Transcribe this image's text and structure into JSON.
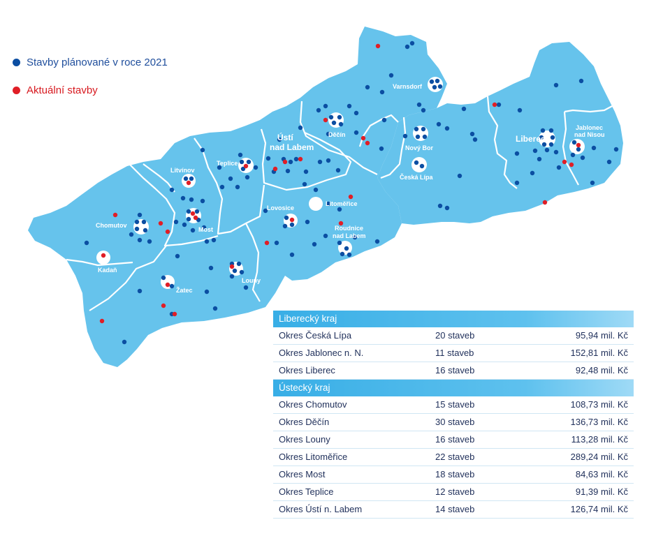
{
  "colors": {
    "region_fill": "#66c3ec",
    "border": "#ffffff",
    "planned_dot": "#0b4ea2",
    "current_dot": "#e01e26",
    "header_blue": "#38aee6"
  },
  "legend": {
    "planned": "Stavby plánované v roce 2021",
    "current": "Aktuální stavby"
  },
  "cities": {
    "varnsdorf": "Varnsdorf",
    "decin": "Děčín",
    "usti_line1": "Ústí",
    "usti_line2": "nad Labem",
    "teplice": "Teplice",
    "litvinov": "Litvínov",
    "most": "Most",
    "chomutov": "Chomutov",
    "kadan": "Kadaň",
    "zatec": "Žatec",
    "louny": "Louny",
    "lovosice": "Lovosice",
    "litomerice": "Litoměřice",
    "roudnice_line1": "Roudnice",
    "roudnice_line2": "nad Labem",
    "novy_bor": "Nový Bor",
    "ceska_lipa": "Česká Lípa",
    "liberec": "Liberec",
    "jablonec_line1": "Jablonec",
    "jablonec_line2": "nad Nisou"
  },
  "table": {
    "liberecky": {
      "title": "Liberecký kraj",
      "rows": [
        {
          "name": "Okres Česká Lípa",
          "count": "20 staveb",
          "price": "95,94 mil. Kč"
        },
        {
          "name": "Okres Jablonec n. N.",
          "count": "11 staveb",
          "price": "152,81 mil. Kč"
        },
        {
          "name": "Okres Liberec",
          "count": "16 staveb",
          "price": "92,48 mil. Kč"
        }
      ]
    },
    "ustecky": {
      "title": "Ústecký kraj",
      "rows": [
        {
          "name": "Okres Chomutov",
          "count": "15 staveb",
          "price": "108,73 mil. Kč"
        },
        {
          "name": "Okres Děčín",
          "count": "30 staveb",
          "price": "136,73 mil. Kč"
        },
        {
          "name": "Okres Louny",
          "count": "16 staveb",
          "price": "113,28 mil. Kč"
        },
        {
          "name": "Okres Litoměřice",
          "count": "22 staveb",
          "price": "289,24 mil. Kč"
        },
        {
          "name": "Okres Most",
          "count": "18 staveb",
          "price": "84,63 mil. Kč"
        },
        {
          "name": "Okres Teplice",
          "count": "12 staveb",
          "price": "91,39 mil. Kč"
        },
        {
          "name": "Okres Ústí n. Labem",
          "count": "14 staveb",
          "price": "126,74 mil. Kč"
        }
      ]
    }
  }
}
